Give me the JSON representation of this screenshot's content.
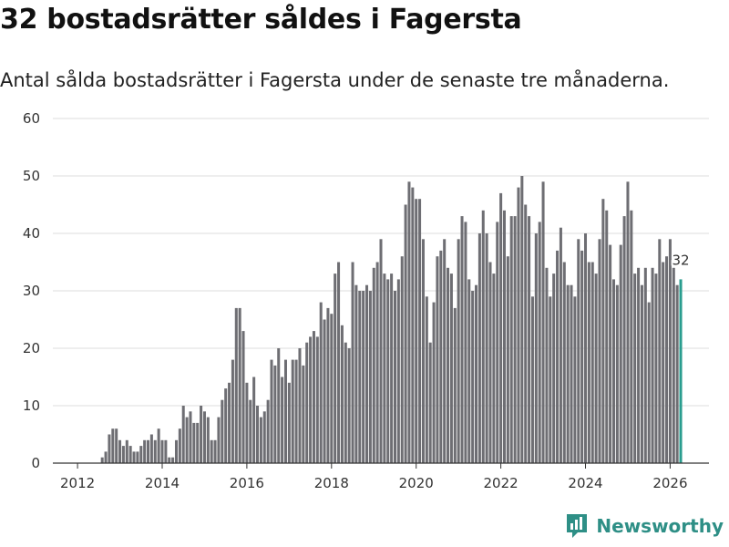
{
  "title": "32 bostadsrätter såldes i Fagersta",
  "subtitle": "Antal sålda bostadsrätter i Fagersta under de senaste tre månaderna.",
  "brand": {
    "name": "Newsworthy"
  },
  "colors": {
    "bar": "#6e6e73",
    "highlight": "#2a9d8f",
    "grid": "#dddddd",
    "axis": "#333333",
    "brand": "#2e8f86"
  },
  "chart_data": {
    "type": "bar",
    "title": "32 bostadsrätter såldes i Fagersta",
    "xlabel": "",
    "ylabel": "",
    "ylim": [
      0,
      60
    ],
    "yticks": [
      "0",
      "10",
      "20",
      "30",
      "40",
      "50",
      "60"
    ],
    "xticks": [
      "2012",
      "2014",
      "2016",
      "2018",
      "2020",
      "2022",
      "2024",
      "2026"
    ],
    "start": "2012-04",
    "x_range": [
      "2011-06",
      "2026-12"
    ],
    "values": [
      0,
      0,
      0,
      0,
      1,
      2,
      5,
      6,
      6,
      4,
      3,
      4,
      3,
      2,
      2,
      3,
      4,
      4,
      5,
      4,
      6,
      4,
      4,
      1,
      1,
      4,
      6,
      10,
      8,
      9,
      7,
      7,
      10,
      9,
      8,
      4,
      4,
      8,
      11,
      13,
      14,
      18,
      27,
      27,
      23,
      14,
      11,
      15,
      10,
      8,
      9,
      11,
      18,
      17,
      20,
      15,
      18,
      14,
      18,
      18,
      20,
      17,
      21,
      22,
      23,
      22,
      28,
      25,
      27,
      26,
      33,
      35,
      24,
      21,
      20,
      35,
      31,
      30,
      30,
      31,
      30,
      34,
      35,
      39,
      33,
      32,
      33,
      30,
      32,
      36,
      45,
      49,
      48,
      46,
      46,
      39,
      29,
      21,
      28,
      36,
      37,
      39,
      34,
      33,
      27,
      39,
      43,
      42,
      32,
      30,
      31,
      40,
      44,
      40,
      35,
      33,
      42,
      47,
      44,
      36,
      43,
      43,
      48,
      50,
      45,
      43,
      29,
      40,
      42,
      49,
      34,
      29,
      33,
      37,
      41,
      35,
      31,
      31,
      29,
      39,
      37,
      40,
      35,
      35,
      33,
      39,
      46,
      44,
      38,
      32,
      31,
      38,
      43,
      49,
      44,
      33,
      34,
      31,
      34,
      28,
      34,
      33,
      39,
      35,
      36,
      39,
      34,
      31,
      32
    ],
    "highlight_last": true,
    "annotation": "32"
  }
}
